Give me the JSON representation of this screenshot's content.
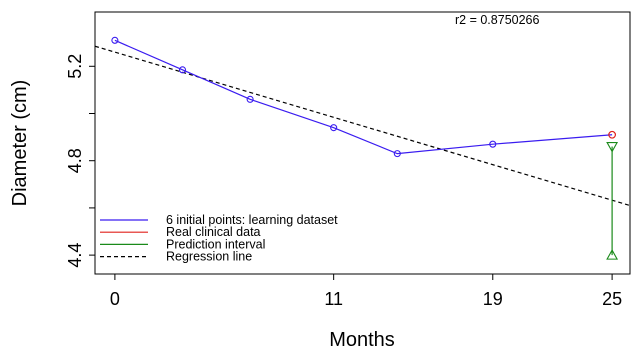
{
  "chart_data": {
    "type": "line",
    "xlabel": "Months",
    "ylabel": "Diameter (cm)",
    "xlim": [
      -1,
      25.9
    ],
    "ylim": [
      4.32,
      5.43
    ],
    "x_ticks": [
      0,
      11,
      19,
      25
    ],
    "y_ticks": [
      4.4,
      4.6,
      4.8,
      5.0,
      5.2
    ],
    "y_tick_labels": [
      "4.4",
      "",
      "4.8",
      "",
      "5.2"
    ],
    "annotation": "r2 = 0.8750266",
    "series": [
      {
        "name": "6 initial points: learning dataset",
        "color": "#3a1cf0",
        "marker": "circle",
        "x": [
          0,
          3.4,
          6.8,
          11,
          14.2,
          19
        ],
        "y": [
          5.31,
          5.185,
          5.06,
          4.94,
          4.83,
          4.87
        ]
      },
      {
        "name": "Real clinical data",
        "color": "#e0201c",
        "marker": "circle",
        "x": [
          25
        ],
        "y": [
          4.91
        ]
      },
      {
        "name": "Prediction interval",
        "color": "#1a8a1a",
        "marker": "triangles",
        "x": [
          25,
          25
        ],
        "y": [
          4.86,
          4.4
        ]
      },
      {
        "name": "Regression line",
        "color": "#000000",
        "style": "dashed",
        "x": [
          -1,
          25.9
        ],
        "y": [
          5.285,
          4.61
        ]
      }
    ]
  }
}
